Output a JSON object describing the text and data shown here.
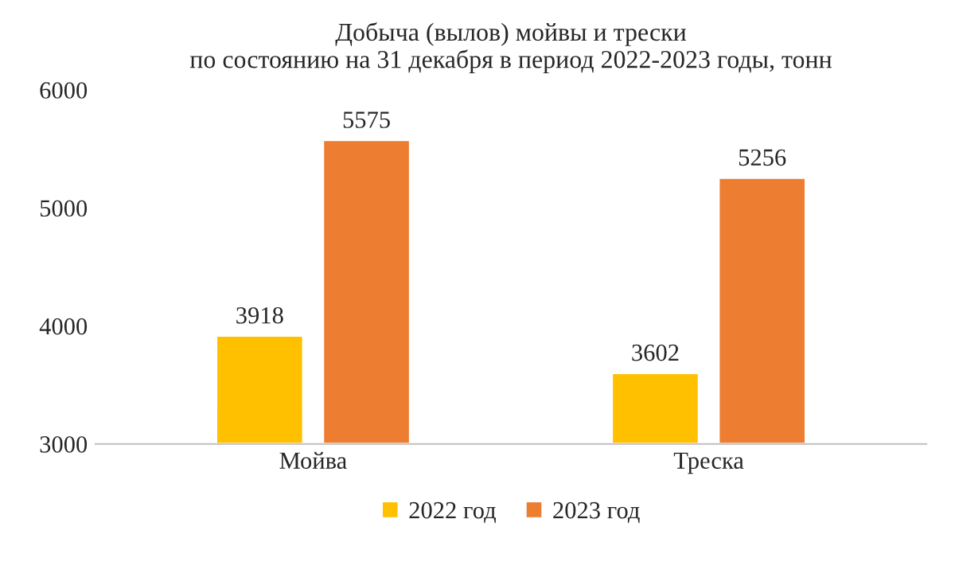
{
  "chart_data": {
    "type": "bar",
    "title": "Добыча (вылов) мойвы и трески\nпо состоянию на 31 декабря в период 2022-2023 годы, тонн",
    "categories": [
      "Мойва",
      "Треска"
    ],
    "series": [
      {
        "name": "2022 год",
        "color": "#ffc000",
        "values": [
          3918,
          3602
        ]
      },
      {
        "name": "2023 год",
        "color": "#ed7d31",
        "values": [
          5575,
          5256
        ]
      }
    ],
    "ylim": [
      3000,
      6000
    ],
    "yticks": [
      3000,
      4000,
      5000,
      6000
    ],
    "grid": false,
    "legend": "bottom",
    "data_labels": true
  }
}
